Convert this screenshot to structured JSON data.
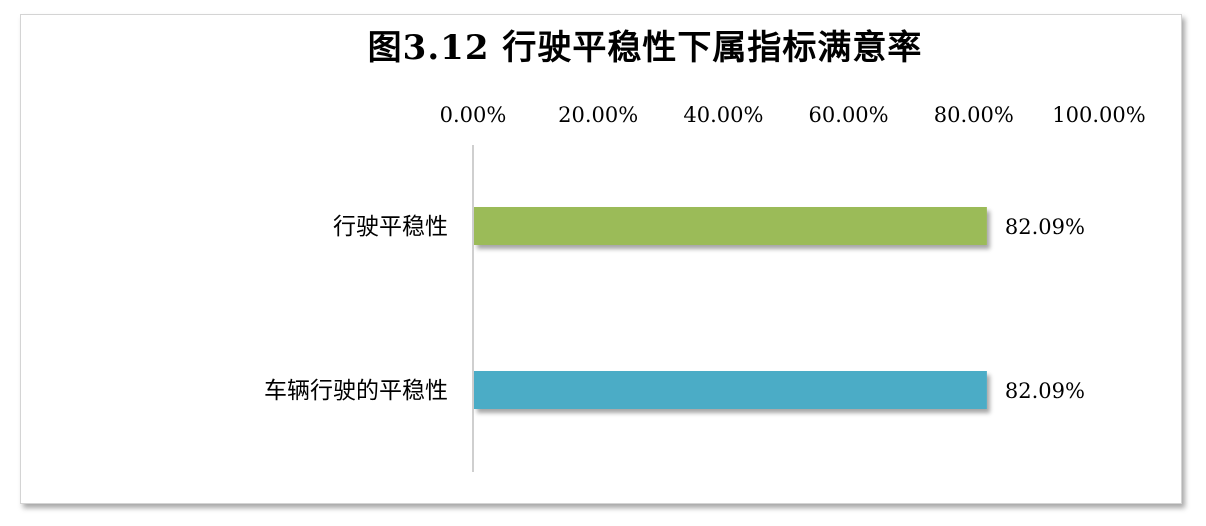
{
  "chart_data": {
    "type": "bar",
    "orientation": "horizontal",
    "title": "图3.12 行驶平稳性下属指标满意率",
    "categories": [
      "行驶平稳性",
      "车辆行驶的平稳性"
    ],
    "values": [
      82.09,
      82.09
    ],
    "value_labels": [
      "82.09%",
      "82.09%"
    ],
    "xlim": [
      0,
      100
    ],
    "x_ticks": [
      0,
      20,
      40,
      60,
      80,
      100
    ],
    "x_tick_labels": [
      "0.00%",
      "20.00%",
      "40.00%",
      "60.00%",
      "80.00%",
      "100.00%"
    ],
    "x_axis_position": "top",
    "bar_colors": [
      "#9bbb59",
      "#4bacc6"
    ],
    "grid": false,
    "legend": "none"
  }
}
